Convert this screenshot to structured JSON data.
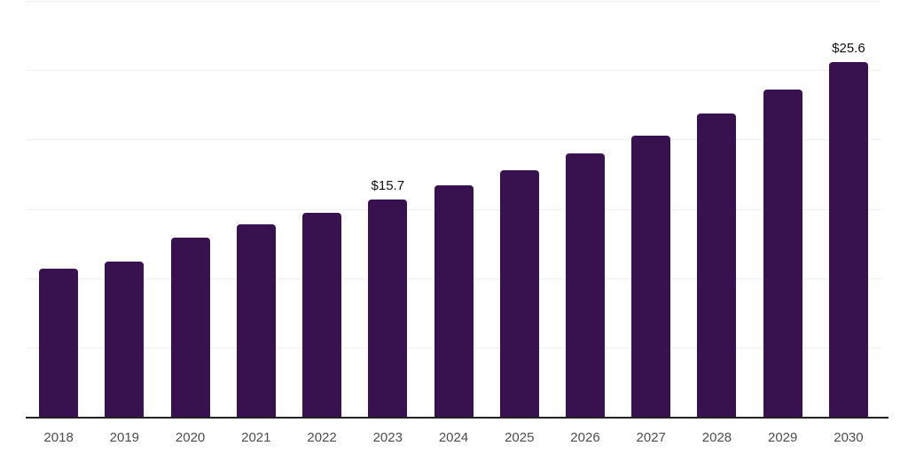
{
  "chart_data": {
    "type": "bar",
    "title": "",
    "xlabel": "",
    "ylabel": "",
    "categories": [
      "2018",
      "2019",
      "2020",
      "2021",
      "2022",
      "2023",
      "2024",
      "2025",
      "2026",
      "2027",
      "2028",
      "2029",
      "2030"
    ],
    "values": [
      10.7,
      11.2,
      12.9,
      13.9,
      14.7,
      15.7,
      16.7,
      17.8,
      19.0,
      20.3,
      21.9,
      23.6,
      25.6
    ],
    "data_labels": {
      "2023": "$15.7",
      "2030": "$25.6"
    },
    "ylim": [
      0,
      30
    ],
    "gridline_values": [
      5,
      10,
      15,
      20,
      25,
      30
    ],
    "grid": true,
    "legend_position": "none",
    "colors": {
      "bar": "#38114f",
      "gridline": "#f0f0f0",
      "axis_line": "#222222",
      "tick_label": "#4d4d4d",
      "data_label": "#111111",
      "background": "#ffffff"
    }
  }
}
